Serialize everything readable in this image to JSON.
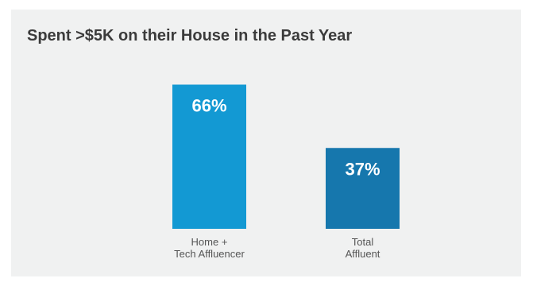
{
  "chart_data": {
    "type": "bar",
    "title": "Spent >$5K on their House in the Past Year",
    "categories": [
      [
        "Home +",
        "Tech Affluencer"
      ],
      [
        "Total",
        "Affluent"
      ]
    ],
    "values": [
      66,
      37
    ],
    "data_labels": [
      "66%",
      "37%"
    ],
    "unit": "%",
    "ylim": [
      0,
      100
    ],
    "xlabel": "",
    "ylabel": "",
    "grid": false,
    "legend": "none",
    "colors": [
      "#1399d3",
      "#1677ad"
    ]
  },
  "colors": {
    "panel_background": "#f0f1f1",
    "title_text": "#3b3b3b",
    "label_text": "#555555"
  }
}
